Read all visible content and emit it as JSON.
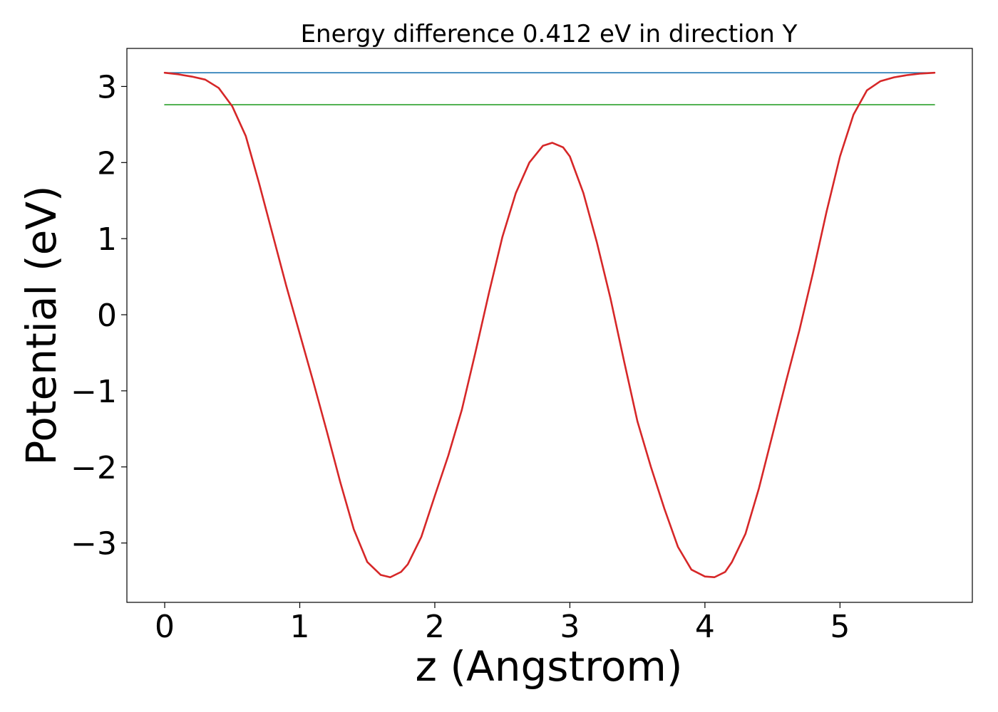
{
  "chart_data": {
    "type": "line",
    "title": "Energy difference 0.412 eV in direction Y",
    "xlabel": "z (Angstrom)",
    "ylabel": "Potential (eV)",
    "xlim": [
      -0.28,
      5.98
    ],
    "ylim": [
      -3.78,
      3.5
    ],
    "xticks": [
      0,
      1,
      2,
      3,
      4,
      5
    ],
    "yticks": [
      -3,
      -2,
      -1,
      0,
      1,
      2,
      3
    ],
    "ytick_labels": [
      "−3",
      "−2",
      "−1",
      "0",
      "1",
      "2",
      "3"
    ],
    "grid": false,
    "series": [
      {
        "color": "#1f77b4",
        "x": [
          0,
          5.7
        ],
        "y": [
          3.18,
          3.18
        ]
      },
      {
        "color": "#2ca02c",
        "x": [
          0,
          5.7
        ],
        "y": [
          2.76,
          2.76
        ]
      },
      {
        "color": "#d62728",
        "x": [
          0,
          0.1,
          0.2,
          0.3,
          0.4,
          0.5,
          0.6,
          0.7,
          0.8,
          0.9,
          1.0,
          1.1,
          1.2,
          1.3,
          1.4,
          1.5,
          1.6,
          1.67,
          1.75,
          1.8,
          1.9,
          2.0,
          2.1,
          2.2,
          2.3,
          2.4,
          2.5,
          2.6,
          2.7,
          2.8,
          2.87,
          2.95,
          3.0,
          3.1,
          3.2,
          3.3,
          3.4,
          3.5,
          3.6,
          3.7,
          3.8,
          3.9,
          4.0,
          4.07,
          4.15,
          4.2,
          4.3,
          4.4,
          4.5,
          4.6,
          4.7,
          4.8,
          4.9,
          5.0,
          5.1,
          5.2,
          5.3,
          5.4,
          5.5,
          5.6,
          5.7
        ],
        "y": [
          3.18,
          3.16,
          3.13,
          3.09,
          2.98,
          2.74,
          2.35,
          1.72,
          1.05,
          0.38,
          -0.25,
          -0.88,
          -1.53,
          -2.2,
          -2.82,
          -3.25,
          -3.42,
          -3.45,
          -3.38,
          -3.28,
          -2.92,
          -2.38,
          -1.85,
          -1.25,
          -0.5,
          0.28,
          1.02,
          1.6,
          2.0,
          2.22,
          2.26,
          2.2,
          2.08,
          1.6,
          0.95,
          0.22,
          -0.6,
          -1.4,
          -2.0,
          -2.55,
          -3.05,
          -3.35,
          -3.44,
          -3.45,
          -3.38,
          -3.25,
          -2.88,
          -2.28,
          -1.58,
          -0.88,
          -0.2,
          0.55,
          1.35,
          2.08,
          2.63,
          2.95,
          3.07,
          3.12,
          3.15,
          3.17,
          3.18
        ]
      }
    ]
  }
}
